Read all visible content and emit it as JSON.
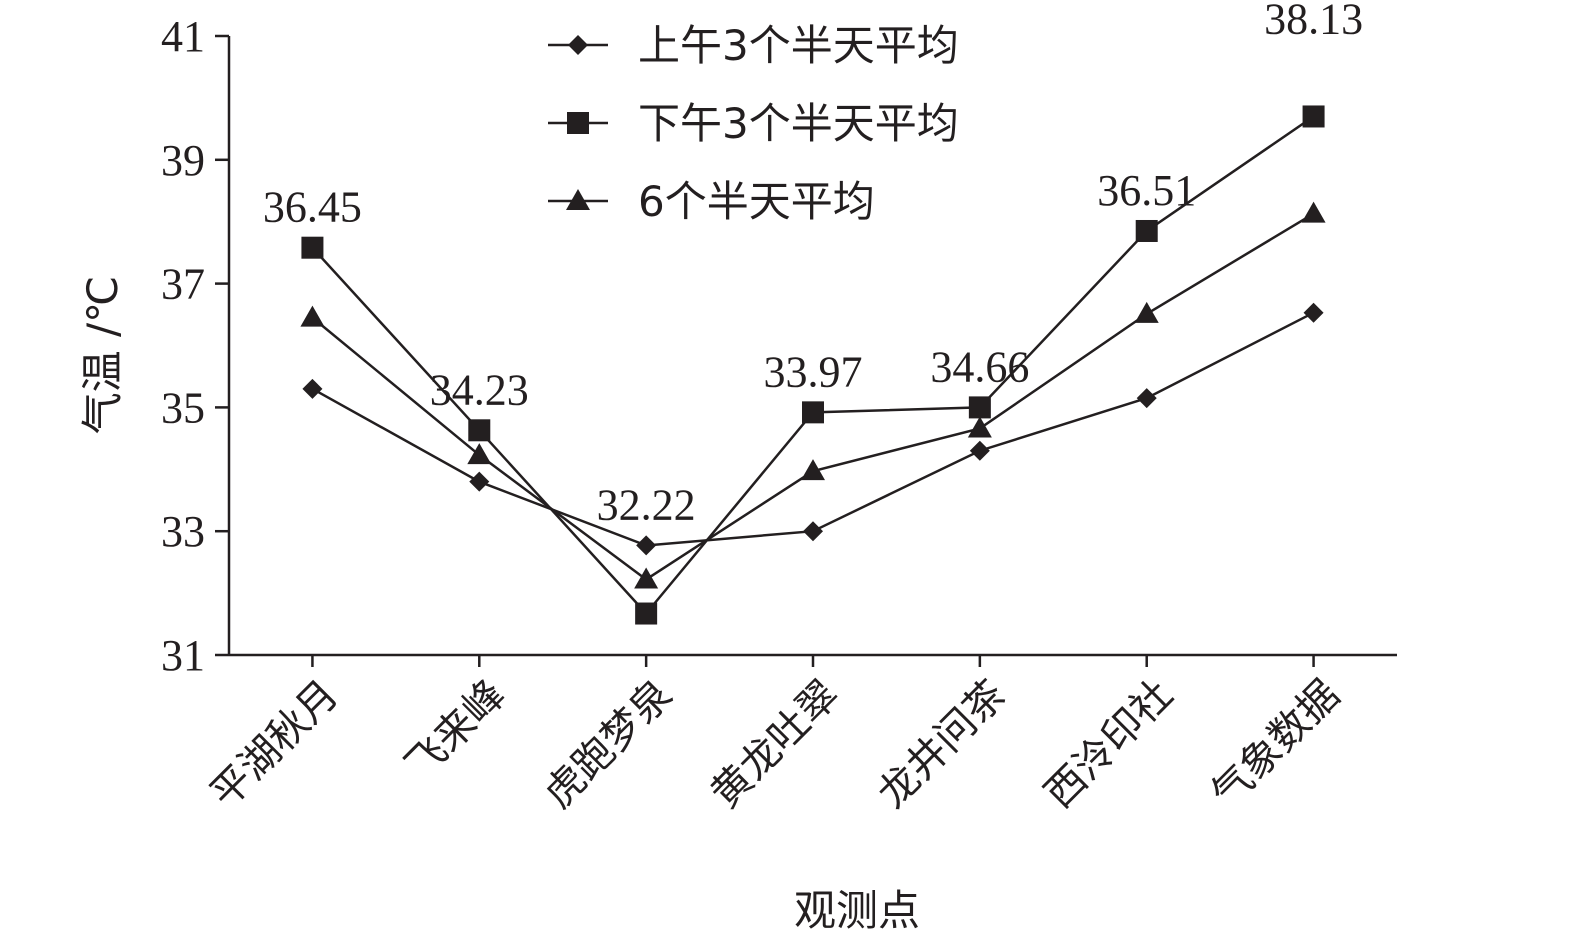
{
  "chart_data": {
    "type": "line",
    "title": "",
    "xlabel": "观测点",
    "ylabel": "气温 /℃",
    "ylim": [
      31,
      41
    ],
    "yticks": [
      31,
      33,
      35,
      37,
      39,
      41
    ],
    "grid": false,
    "legend_position": "top-center",
    "categories": [
      "平湖秋月",
      "飞来峰",
      "虎跑梦泉",
      "黄龙吐翠",
      "龙井问茶",
      "西泠印社",
      "气象数据"
    ],
    "series": [
      {
        "name": "上午3个半天平均",
        "marker": "diamond",
        "values": [
          35.3,
          33.8,
          32.77,
          33.0,
          34.3,
          35.15,
          36.53
        ]
      },
      {
        "name": "下午3个半天平均",
        "marker": "square",
        "values": [
          37.58,
          34.63,
          31.67,
          34.92,
          35.0,
          37.85,
          39.7
        ]
      },
      {
        "name": "6个半天平均",
        "marker": "triangle",
        "values": [
          36.45,
          34.23,
          32.22,
          33.97,
          34.66,
          36.51,
          38.13
        ]
      }
    ],
    "data_labels": [
      "36.45",
      "34.23",
      "32.22",
      "33.97",
      "34.66",
      "36.51",
      "38.13"
    ],
    "colors": {
      "ink": "#231f20"
    }
  }
}
